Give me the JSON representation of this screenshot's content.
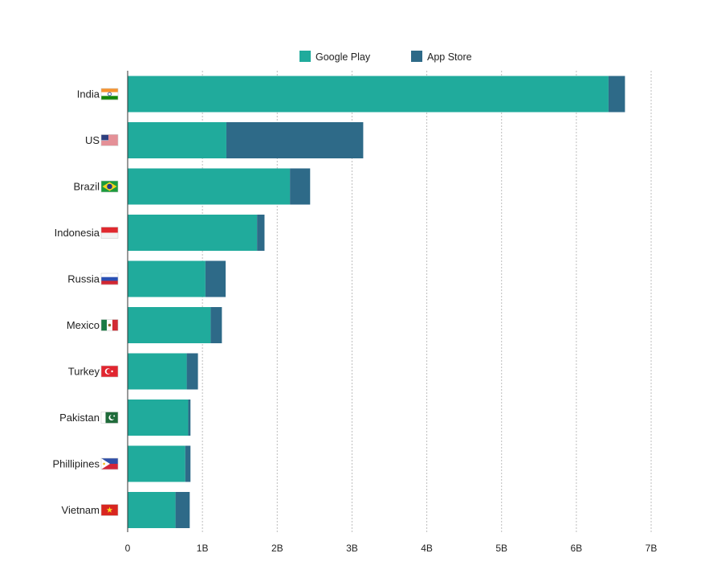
{
  "chart_data": {
    "type": "bar",
    "orientation": "horizontal",
    "stacked": true,
    "categories": [
      "India",
      "US",
      "Brazil",
      "Indonesia",
      "Russia",
      "Mexico",
      "Turkey",
      "Pakistan",
      "Phillipines",
      "Vietnam"
    ],
    "series": [
      {
        "name": "Google Play",
        "color": "#20ab9c",
        "values": [
          6.43,
          1.32,
          2.17,
          1.73,
          1.04,
          1.11,
          0.79,
          0.81,
          0.77,
          0.64
        ]
      },
      {
        "name": "App Store",
        "color": "#2e6a88",
        "values": [
          0.22,
          1.83,
          0.27,
          0.1,
          0.27,
          0.15,
          0.15,
          0.03,
          0.07,
          0.19
        ]
      }
    ],
    "xlim": [
      0,
      7
    ],
    "x_ticks": [
      "0",
      "1B",
      "2B",
      "3B",
      "4B",
      "5B",
      "6B",
      "7B"
    ],
    "grid": "vertical dashed",
    "legend_position": "top",
    "flag_icons": [
      "india-flag-icon",
      "us-flag-icon",
      "brazil-flag-icon",
      "indonesia-flag-icon",
      "russia-flag-icon",
      "mexico-flag-icon",
      "turkey-flag-icon",
      "pakistan-flag-icon",
      "philippines-flag-icon",
      "vietnam-flag-icon"
    ]
  }
}
